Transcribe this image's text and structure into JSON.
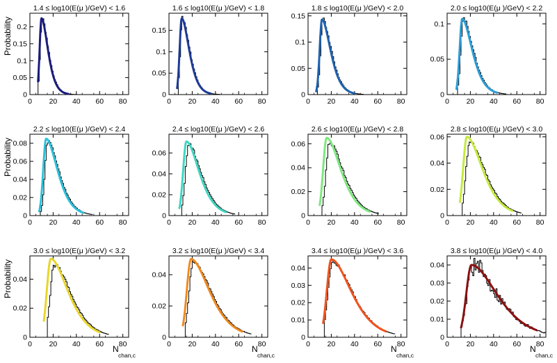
{
  "figure": {
    "ylabel": "Probability",
    "xlabel_main": "N",
    "xlabel_sub": "chan,c"
  },
  "chart_data": [
    {
      "type": "line",
      "title": "1.4 ≤ log10(E(μ )/GeV) < 1.6",
      "xlim": [
        0,
        85
      ],
      "ylim": [
        0,
        0.24
      ],
      "xticks": [
        0,
        20,
        40,
        60,
        80
      ],
      "yticks": [
        0,
        0.05,
        0.1,
        0.15,
        0.2
      ],
      "ytick_labels": [
        "0",
        "0.05",
        "0.1",
        "0.15",
        "0.2"
      ],
      "peak_x": 10,
      "peak_y": 0.225,
      "rise_w": 1.6,
      "fall_w": 4.5,
      "x_start": 7,
      "x_end": 33,
      "fit_color": "#1b1c7c",
      "hist_shift": 0.5,
      "hist_scale": 1.0
    },
    {
      "type": "line",
      "title": "1.6 ≤ log10(E(μ )/GeV) < 1.8",
      "xlim": [
        0,
        85
      ],
      "ylim": [
        0,
        0.19
      ],
      "xticks": [
        0,
        20,
        40,
        60,
        80
      ],
      "yticks": [
        0,
        0.05,
        0.1,
        0.15
      ],
      "ytick_labels": [
        "0",
        "0.05",
        "0.1",
        "0.15"
      ],
      "peak_x": 11,
      "peak_y": 0.178,
      "rise_w": 1.8,
      "fall_w": 5.2,
      "x_start": 7,
      "x_end": 36,
      "fit_color": "#1d3a96",
      "hist_shift": 0.6,
      "hist_scale": 1.0
    },
    {
      "type": "line",
      "title": "1.8 ≤ log10(E(μ )/GeV) < 2.0",
      "xlim": [
        0,
        85
      ],
      "ylim": [
        0,
        0.155
      ],
      "xticks": [
        0,
        20,
        40,
        60,
        80
      ],
      "yticks": [
        0,
        0.05,
        0.1,
        0.15
      ],
      "ytick_labels": [
        "0",
        "0.05",
        "0.1",
        "0.15"
      ],
      "peak_x": 12,
      "peak_y": 0.143,
      "rise_w": 2.0,
      "fall_w": 6.0,
      "x_start": 7,
      "x_end": 40,
      "fit_color": "#1f62b0",
      "hist_shift": 0.8,
      "hist_scale": 1.0
    },
    {
      "type": "line",
      "title": "2.0 ≤ log10(E(μ )/GeV) < 2.2",
      "xlim": [
        0,
        85
      ],
      "ylim": [
        0,
        0.115
      ],
      "xticks": [
        0,
        20,
        40,
        60,
        80
      ],
      "yticks": [
        0,
        0.05,
        0.1
      ],
      "ytick_labels": [
        "0",
        "0.05",
        "0.1"
      ],
      "peak_x": 13,
      "peak_y": 0.107,
      "rise_w": 2.2,
      "fall_w": 7.0,
      "x_start": 8,
      "x_end": 43,
      "fit_color": "#2a9ed8",
      "hist_shift": 1.0,
      "hist_scale": 1.0
    },
    {
      "type": "line",
      "title": "2.2 ≤ log10(E(μ )/GeV) < 2.4",
      "xlim": [
        0,
        85
      ],
      "ylim": [
        0,
        0.09
      ],
      "xticks": [
        0,
        20,
        40,
        60,
        80
      ],
      "yticks": [
        0,
        0.02,
        0.04,
        0.06,
        0.08
      ],
      "ytick_labels": [
        "0",
        "0.02",
        "0.04",
        "0.06",
        "0.08"
      ],
      "peak_x": 14,
      "peak_y": 0.085,
      "rise_w": 2.5,
      "fall_w": 8.0,
      "x_start": 8,
      "x_end": 46,
      "fit_color": "#29c2dc",
      "hist_shift": 1.5,
      "hist_scale": 0.97
    },
    {
      "type": "line",
      "title": "2.4 ≤ log10(E(μ )/GeV) < 2.6",
      "xlim": [
        0,
        85
      ],
      "ylim": [
        0,
        0.078
      ],
      "xticks": [
        0,
        20,
        40,
        60,
        80
      ],
      "yticks": [
        0,
        0.02,
        0.04,
        0.06
      ],
      "ytick_labels": [
        "0",
        "0.02",
        "0.04",
        "0.06"
      ],
      "peak_x": 15,
      "peak_y": 0.071,
      "rise_w": 2.8,
      "fall_w": 9.0,
      "x_start": 9,
      "x_end": 49,
      "fit_color": "#3fd6c2",
      "hist_shift": 2.0,
      "hist_scale": 0.96
    },
    {
      "type": "line",
      "title": "2.6 ≤ log10(E(μ )/GeV) < 2.8",
      "xlim": [
        0,
        85
      ],
      "ylim": [
        0,
        0.068
      ],
      "xticks": [
        0,
        20,
        40,
        60,
        80
      ],
      "yticks": [
        0,
        0.02,
        0.04,
        0.06
      ],
      "ytick_labels": [
        "0",
        "0.02",
        "0.04",
        "0.06"
      ],
      "peak_x": 16,
      "peak_y": 0.065,
      "rise_w": 3.0,
      "fall_w": 10.0,
      "x_start": 10,
      "x_end": 53,
      "fit_color": "#7ee87e",
      "hist_shift": 2.5,
      "hist_scale": 0.94
    },
    {
      "type": "line",
      "title": "2.8 ≤ log10(E(μ )/GeV) < 3.0",
      "xlim": [
        0,
        85
      ],
      "ylim": [
        0,
        0.062
      ],
      "xticks": [
        0,
        20,
        40,
        60,
        80
      ],
      "yticks": [
        0,
        0.02,
        0.04,
        0.06
      ],
      "ytick_labels": [
        "0",
        "0.02",
        "0.04",
        "0.06"
      ],
      "peak_x": 17,
      "peak_y": 0.06,
      "rise_w": 3.2,
      "fall_w": 11.0,
      "x_start": 11,
      "x_end": 56,
      "fit_color": "#c4ea3c",
      "hist_shift": 2.5,
      "hist_scale": 0.94
    },
    {
      "type": "line",
      "title": "3.0 ≤ log10(E(μ )/GeV) < 3.2",
      "xlim": [
        0,
        85
      ],
      "ylim": [
        0,
        0.056
      ],
      "xticks": [
        0,
        20,
        40,
        60,
        80
      ],
      "yticks": [
        0,
        0.02,
        0.04
      ],
      "ytick_labels": [
        "0",
        "0.02",
        "0.04"
      ],
      "peak_x": 18,
      "peak_y": 0.054,
      "rise_w": 3.4,
      "fall_w": 12.0,
      "x_start": 12,
      "x_end": 60,
      "fit_color": "#e8d62a",
      "hist_shift": 3.0,
      "hist_scale": 0.92
    },
    {
      "type": "line",
      "title": "3.2 ≤ log10(E(μ )/GeV) < 3.4",
      "xlim": [
        0,
        85
      ],
      "ylim": [
        0,
        0.052
      ],
      "xticks": [
        0,
        20,
        40,
        60,
        80
      ],
      "yticks": [
        0,
        0.02,
        0.04
      ],
      "ytick_labels": [
        "0",
        "0.02",
        "0.04"
      ],
      "peak_x": 19,
      "peak_y": 0.05,
      "rise_w": 3.6,
      "fall_w": 13.0,
      "x_start": 12,
      "x_end": 63,
      "fit_color": "#f08a1e",
      "hist_shift": 2.0,
      "hist_scale": 0.96
    },
    {
      "type": "line",
      "title": "3.4 ≤ log10(E(μ )/GeV) < 3.6",
      "xlim": [
        0,
        85
      ],
      "ylim": [
        0,
        0.047
      ],
      "xticks": [
        0,
        20,
        40,
        60,
        80
      ],
      "yticks": [
        0,
        0.01,
        0.02,
        0.03,
        0.04
      ],
      "ytick_labels": [
        "0",
        "0.01",
        "0.02",
        "0.03",
        "0.04"
      ],
      "peak_x": 20,
      "peak_y": 0.045,
      "rise_w": 3.8,
      "fall_w": 14.0,
      "x_start": 13,
      "x_end": 67,
      "fit_color": "#f0541e",
      "hist_shift": 1.0,
      "hist_scale": 0.98
    },
    {
      "type": "line",
      "title": "3.8 ≤ log10(E(μ )/GeV) < 4.0",
      "xlim": [
        0,
        85
      ],
      "ylim": [
        0,
        0.045
      ],
      "xticks": [
        0,
        20,
        40,
        60,
        80
      ],
      "yticks": [
        0,
        0.01,
        0.02,
        0.03,
        0.04
      ],
      "ytick_labels": [
        "0",
        "0.01",
        "0.02",
        "0.03",
        "0.04"
      ],
      "peak_x": 21,
      "peak_y": 0.04,
      "rise_w": 4.5,
      "fall_w": 18.0,
      "x_start": 12,
      "x_end": 77,
      "fit_color": "#8a1010",
      "hist_shift": 0.5,
      "hist_scale": 1.0,
      "hist_noisy": true
    }
  ]
}
